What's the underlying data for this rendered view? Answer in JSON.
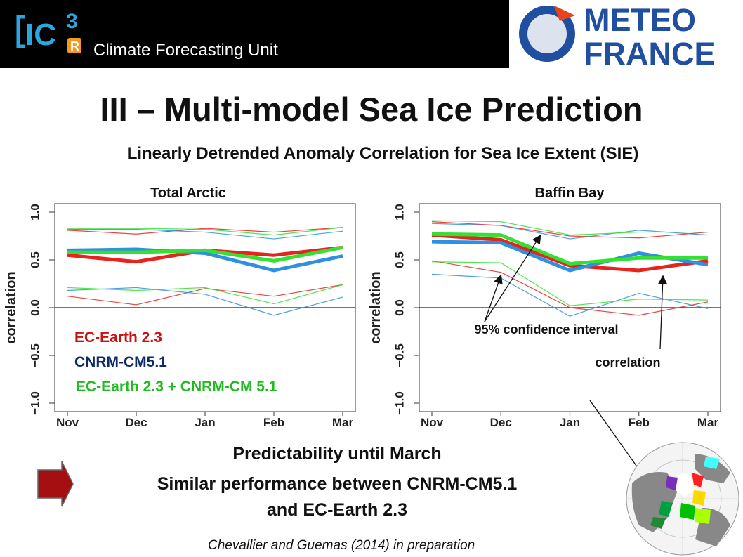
{
  "header": {
    "logo_text": "IC",
    "logo_sup": "3",
    "logo_sub": "R",
    "unit_name": "Climate Forecasting Unit",
    "partner_logo_line1": "METEO",
    "partner_logo_line2": "FRANCE"
  },
  "slide": {
    "title": "III – Multi-model Sea Ice Prediction",
    "subtitle": "Linearly Detrended Anomaly Correlation for Sea Ice Extent (SIE)",
    "conclusion_line1": "Predictability until March",
    "conclusion_line2": "Similar performance between CNRM-CM5.1",
    "conclusion_line3": "and EC-Earth 2.3",
    "citation": "Chevallier and Guemas (2014) in preparation"
  },
  "colors": {
    "ec_earth": "#e8231c",
    "cnrm": "#2f8fe0",
    "multi": "#33e033",
    "ec_earth_label": "#cc1111",
    "cnrm_label": "#0d2a6b",
    "multi_label": "#22bb22"
  },
  "annotations": {
    "ci": "95% confidence interval",
    "corr": "correlation"
  },
  "chart_data": [
    {
      "type": "line",
      "title": "Total Arctic",
      "xlabel": "",
      "ylabel": "correlation",
      "x": [
        "Nov",
        "Dec",
        "Jan",
        "Feb",
        "Mar"
      ],
      "ylim": [
        -1.0,
        1.0
      ],
      "yticks": [
        "−1.0",
        "−0.5",
        "0.0",
        "0.5",
        "1.0"
      ],
      "legend": [
        "EC-Earth 2.3",
        "CNRM-CM5.1",
        "EC-Earth 2.3 + CNRM-CM 5.1"
      ],
      "series": [
        {
          "name": "EC-Earth 2.3",
          "style": "correlation",
          "values": [
            0.55,
            0.48,
            0.6,
            0.55,
            0.63
          ]
        },
        {
          "name": "CNRM-CM5.1",
          "style": "correlation",
          "values": [
            0.6,
            0.61,
            0.57,
            0.39,
            0.54
          ]
        },
        {
          "name": "EC-Earth 2.3 + CNRM-CM 5.1",
          "style": "correlation",
          "values": [
            0.58,
            0.58,
            0.6,
            0.49,
            0.63
          ]
        },
        {
          "name": "EC-Earth 2.3",
          "style": "ci_upper",
          "values": [
            0.81,
            0.77,
            0.83,
            0.79,
            0.84
          ]
        },
        {
          "name": "EC-Earth 2.3",
          "style": "ci_lower",
          "values": [
            0.12,
            0.03,
            0.2,
            0.12,
            0.24
          ]
        },
        {
          "name": "CNRM-CM5.1",
          "style": "ci_upper",
          "values": [
            0.82,
            0.82,
            0.79,
            0.72,
            0.8
          ]
        },
        {
          "name": "CNRM-CM5.1",
          "style": "ci_lower",
          "values": [
            0.18,
            0.21,
            0.14,
            -0.08,
            0.11
          ]
        },
        {
          "name": "EC-Earth 2.3 + CNRM-CM 5.1",
          "style": "ci_upper",
          "values": [
            0.83,
            0.83,
            0.82,
            0.76,
            0.84
          ]
        },
        {
          "name": "EC-Earth 2.3 + CNRM-CM 5.1",
          "style": "ci_lower",
          "values": [
            0.21,
            0.18,
            0.21,
            0.04,
            0.24
          ]
        }
      ]
    },
    {
      "type": "line",
      "title": "Baffin Bay",
      "xlabel": "",
      "ylabel": "correlation",
      "x": [
        "Nov",
        "Dec",
        "Jan",
        "Feb",
        "Mar"
      ],
      "ylim": [
        -1.0,
        1.0
      ],
      "yticks": [
        "−1.0",
        "−0.5",
        "0.0",
        "0.5",
        "1.0"
      ],
      "series": [
        {
          "name": "EC-Earth 2.3",
          "style": "correlation",
          "values": [
            0.76,
            0.71,
            0.44,
            0.39,
            0.49
          ]
        },
        {
          "name": "CNRM-CM5.1",
          "style": "correlation",
          "values": [
            0.69,
            0.68,
            0.39,
            0.57,
            0.45
          ]
        },
        {
          "name": "EC-Earth 2.3 + CNRM-CM 5.1",
          "style": "correlation",
          "values": [
            0.77,
            0.76,
            0.46,
            0.52,
            0.52
          ]
        },
        {
          "name": "EC-Earth 2.3",
          "style": "ci_upper",
          "values": [
            0.9,
            0.86,
            0.75,
            0.73,
            0.79
          ]
        },
        {
          "name": "EC-Earth 2.3",
          "style": "ci_lower",
          "values": [
            0.49,
            0.37,
            0.0,
            -0.08,
            0.06
          ]
        },
        {
          "name": "CNRM-CM5.1",
          "style": "ci_upper",
          "values": [
            0.88,
            0.86,
            0.72,
            0.81,
            0.76
          ]
        },
        {
          "name": "CNRM-CM5.1",
          "style": "ci_lower",
          "values": [
            0.35,
            0.31,
            -0.09,
            0.15,
            -0.01
          ]
        },
        {
          "name": "EC-Earth 2.3 + CNRM-CM 5.1",
          "style": "ci_upper",
          "values": [
            0.91,
            0.9,
            0.76,
            0.79,
            0.79
          ]
        },
        {
          "name": "EC-Earth 2.3 + CNRM-CM 5.1",
          "style": "ci_lower",
          "values": [
            0.48,
            0.47,
            0.02,
            0.09,
            0.08
          ]
        }
      ]
    }
  ]
}
